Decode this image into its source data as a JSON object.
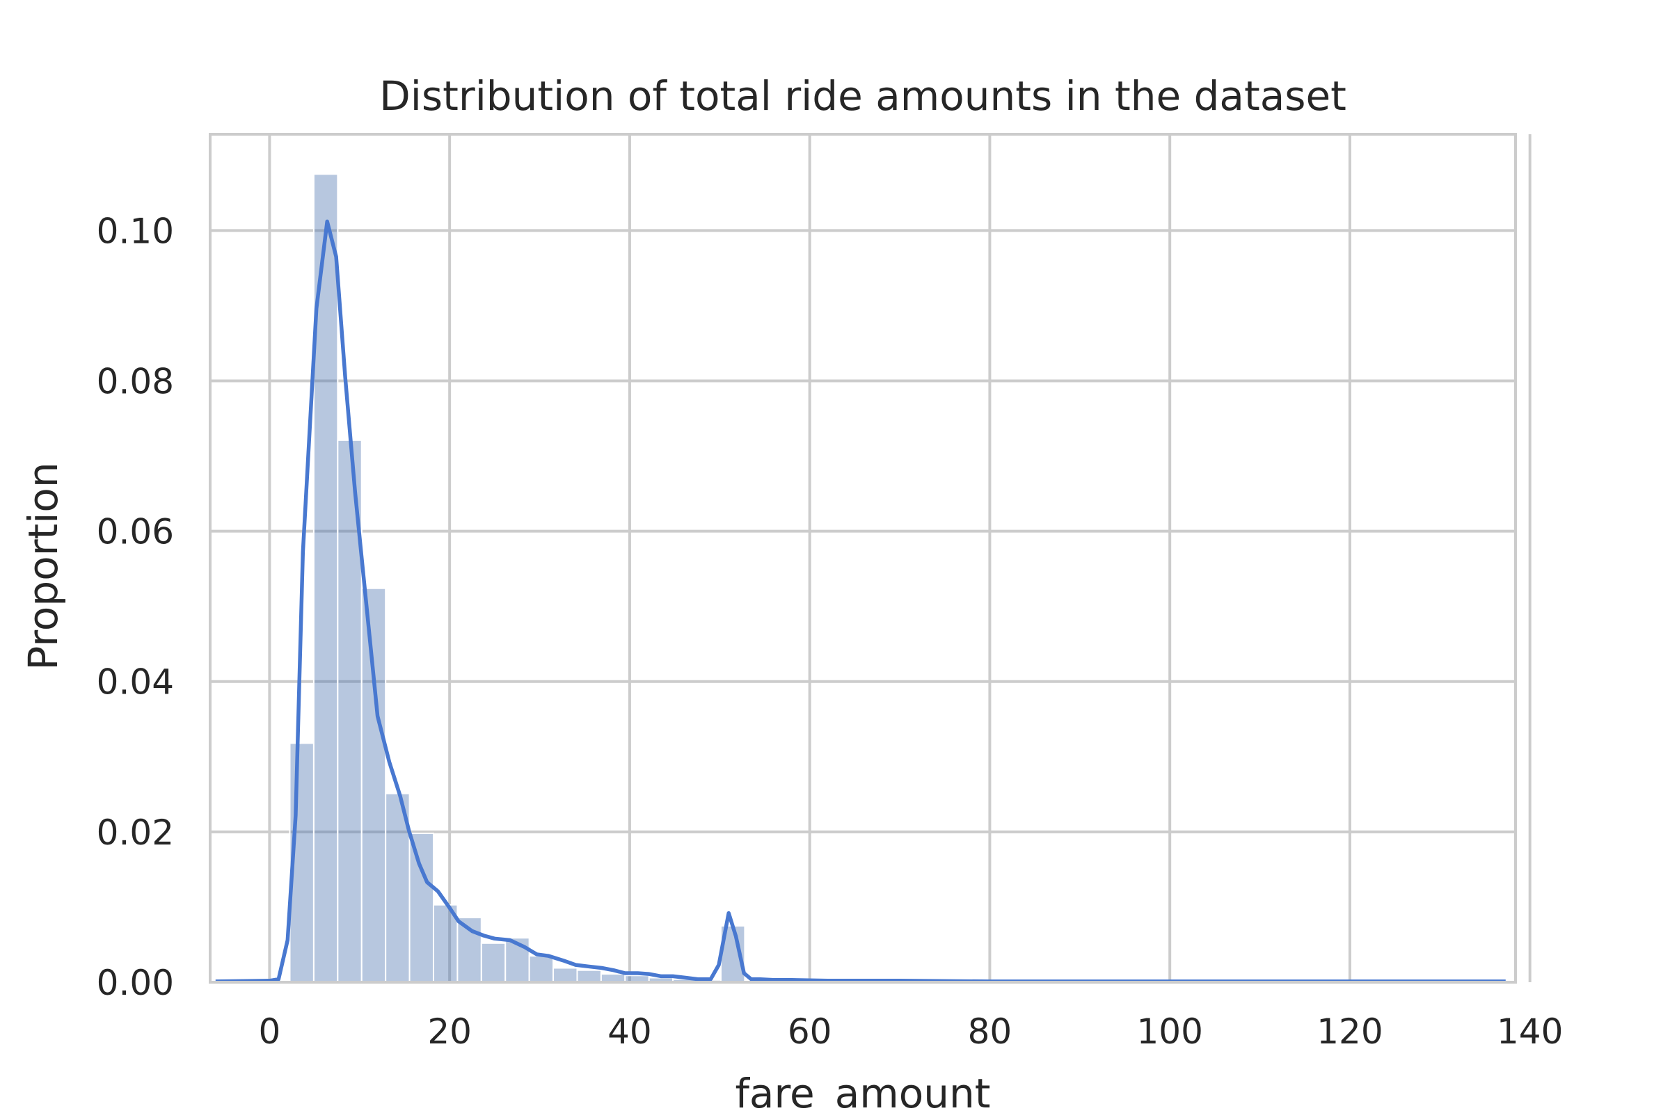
{
  "chart_data": {
    "type": "bar",
    "title": "Distribution of total ride amounts in the dataset",
    "xlabel": "fare_amount",
    "ylabel": "Proportion",
    "xlim": [
      -6.6,
      138.4
    ],
    "ylim": [
      0,
      0.1128
    ],
    "xticks": [
      0,
      20,
      40,
      60,
      80,
      100,
      120,
      140
    ],
    "yticks": [
      0.0,
      0.02,
      0.04,
      0.06,
      0.08,
      0.1
    ],
    "ytick_labels": [
      "0.00",
      "0.02",
      "0.04",
      "0.06",
      "0.08",
      "0.10"
    ],
    "grid": true,
    "colors": {
      "bars": "#4c72b0",
      "line": "#4878d0",
      "grid": "#cccccc",
      "spine": "#cccccc"
    },
    "histogram": {
      "bin_width": 2.66,
      "bins": [
        {
          "x": 2.25,
          "value": 0.0318
        },
        {
          "x": 4.91,
          "value": 0.1075
        },
        {
          "x": 7.57,
          "value": 0.0721
        },
        {
          "x": 10.23,
          "value": 0.0524
        },
        {
          "x": 12.89,
          "value": 0.0251
        },
        {
          "x": 15.55,
          "value": 0.0198
        },
        {
          "x": 18.21,
          "value": 0.0103
        },
        {
          "x": 20.87,
          "value": 0.0086
        },
        {
          "x": 23.53,
          "value": 0.0052
        },
        {
          "x": 26.19,
          "value": 0.0059
        },
        {
          "x": 28.85,
          "value": 0.0035
        },
        {
          "x": 31.51,
          "value": 0.0019
        },
        {
          "x": 34.17,
          "value": 0.0016
        },
        {
          "x": 36.83,
          "value": 0.0011
        },
        {
          "x": 39.49,
          "value": 0.0009
        },
        {
          "x": 42.15,
          "value": 0.0006
        },
        {
          "x": 44.81,
          "value": 0.0004
        },
        {
          "x": 47.47,
          "value": 0.0003
        },
        {
          "x": 50.13,
          "value": 0.0075
        },
        {
          "x": 52.79,
          "value": 0.0002
        }
      ]
    },
    "kde": {
      "x": [
        -6.0,
        0,
        1.0,
        2.0,
        2.9,
        3.7,
        5.2,
        6.4,
        7.4,
        8.4,
        9.5,
        10.6,
        12.0,
        13.3,
        14.5,
        15.5,
        16.6,
        17.5,
        18.7,
        20.0,
        21.0,
        22.5,
        23.8,
        25.0,
        26.7,
        28.3,
        29.7,
        31.0,
        32.6,
        34.0,
        35.4,
        36.9,
        38.2,
        39.5,
        40.9,
        42.1,
        43.5,
        44.8,
        46.2,
        47.6,
        49.0,
        49.9,
        51.0,
        51.8,
        52.7,
        53.5,
        54.5,
        56.0,
        58.0,
        62.0,
        70.0,
        80.0,
        90.0,
        100.0,
        110.0,
        120.0,
        130.0,
        137.3
      ],
      "y": [
        0.0001,
        0.0002,
        0.0004,
        0.0056,
        0.0222,
        0.0572,
        0.0896,
        0.1012,
        0.0965,
        0.0805,
        0.0652,
        0.0521,
        0.0354,
        0.0293,
        0.0248,
        0.0201,
        0.0158,
        0.0133,
        0.0121,
        0.0099,
        0.0081,
        0.0068,
        0.0062,
        0.0058,
        0.0056,
        0.0047,
        0.0037,
        0.0035,
        0.0029,
        0.0023,
        0.0021,
        0.0019,
        0.0016,
        0.0012,
        0.0012,
        0.0011,
        0.0008,
        0.0008,
        0.0006,
        0.0004,
        0.0004,
        0.0023,
        0.0092,
        0.0061,
        0.0012,
        0.0004,
        0.0004,
        0.0003,
        0.0003,
        0.0002,
        0.0002,
        0.0001,
        0.0001,
        0.0001,
        0.0001,
        0.0001,
        0.0001,
        0.0001
      ]
    }
  }
}
